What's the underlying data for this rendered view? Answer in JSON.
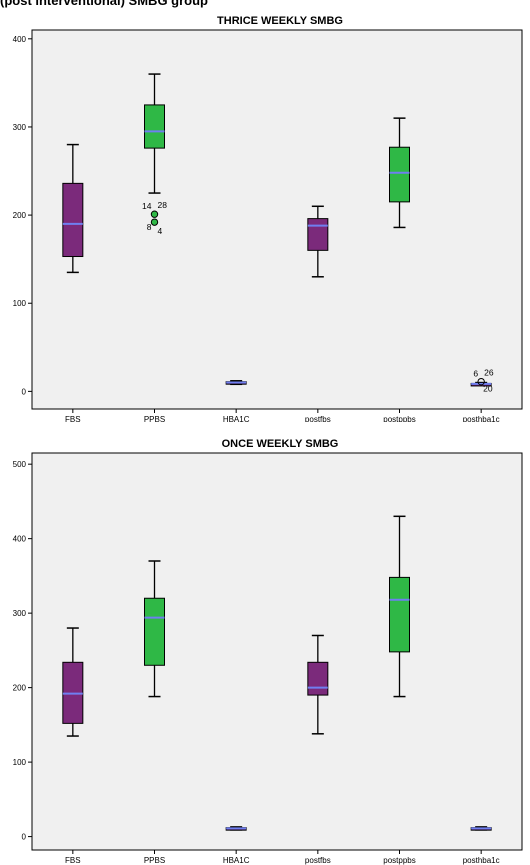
{
  "caption": "(post interventional) SMBG group",
  "chart_data": [
    {
      "type": "box",
      "title": "THRICE WEEKLY SMBG",
      "xlabel": "",
      "ylabel": "",
      "ylim": [
        -20,
        410
      ],
      "yticks": [
        0,
        100,
        200,
        300,
        400
      ],
      "categories": [
        "FBS",
        "PPBS",
        "HBA1C",
        "postfbs",
        "postppbs",
        "posthba1c"
      ],
      "colors": [
        "#7b2a7b",
        "#2fb846",
        "#7b2a7b",
        "#7b2a7b",
        "#2fb846",
        "#7b2a7b"
      ],
      "median_color": "#6f7ff0",
      "boxes": [
        {
          "min": 135,
          "q1": 153,
          "median": 190,
          "q3": 236,
          "max": 280
        },
        {
          "min": 225,
          "q1": 276,
          "median": 295,
          "q3": 325,
          "max": 360
        },
        {
          "min": 8,
          "q1": 9,
          "median": 10,
          "q3": 11,
          "max": 12
        },
        {
          "min": 130,
          "q1": 160,
          "median": 188,
          "q3": 196,
          "max": 210
        },
        {
          "min": 186,
          "q1": 215,
          "median": 248,
          "q3": 277,
          "max": 310
        },
        {
          "min": 7,
          "q1": 8,
          "median": 8.5,
          "q3": 9,
          "max": 10
        }
      ],
      "outliers": [
        {
          "category": 1,
          "value": 201,
          "labels": [
            "14",
            "28"
          ],
          "dir": "up"
        },
        {
          "category": 1,
          "value": 192,
          "labels": [
            "8",
            "4"
          ],
          "dir": "down"
        },
        {
          "category": 5,
          "value": 11,
          "labels": [
            "6",
            "26"
          ],
          "dir": "up",
          "extra": "20"
        }
      ]
    },
    {
      "type": "box",
      "title": "ONCE WEEKLY SMBG",
      "xlabel": "",
      "ylabel": "",
      "ylim": [
        -18,
        515
      ],
      "yticks": [
        0,
        100,
        200,
        300,
        400,
        500
      ],
      "categories": [
        "FBS",
        "PPBS",
        "HBA1C",
        "postfbs",
        "postppbs",
        "posthba1c"
      ],
      "colors": [
        "#7b2a7b",
        "#2fb846",
        "#7b2a7b",
        "#7b2a7b",
        "#2fb846",
        "#7b2a7b"
      ],
      "median_color": "#6f7ff0",
      "boxes": [
        {
          "min": 135,
          "q1": 152,
          "median": 192,
          "q3": 234,
          "max": 280
        },
        {
          "min": 188,
          "q1": 230,
          "median": 294,
          "q3": 320,
          "max": 370
        },
        {
          "min": 9,
          "q1": 10,
          "median": 11,
          "q3": 12,
          "max": 13
        },
        {
          "min": 138,
          "q1": 190,
          "median": 200,
          "q3": 234,
          "max": 270
        },
        {
          "min": 188,
          "q1": 248,
          "median": 318,
          "q3": 348,
          "max": 430
        },
        {
          "min": 9,
          "q1": 10,
          "median": 11,
          "q3": 12,
          "max": 13
        }
      ],
      "outliers": []
    }
  ]
}
